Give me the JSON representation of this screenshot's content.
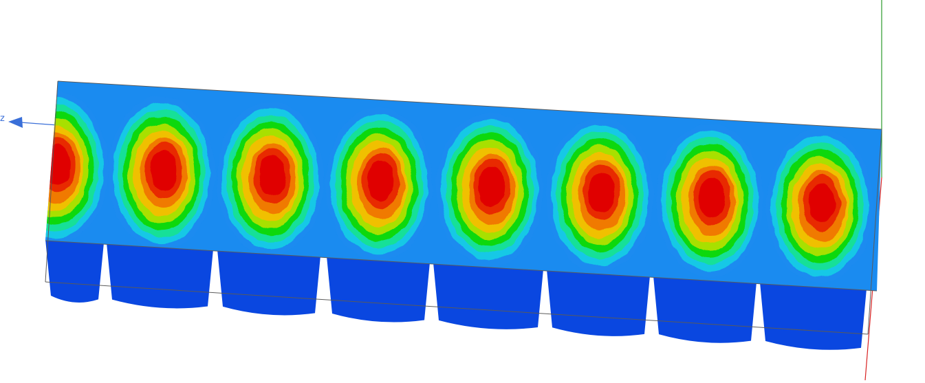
{
  "viewport": {
    "colors": {
      "background": "#ffffff",
      "outline": "#5a5a5a",
      "axis_z": "#3a6fd8",
      "axis_y": "#2a9a2a",
      "axis_x": "#d82020",
      "contour_levels": [
        "#0a47e0",
        "#1a8bf0",
        "#18c8e6",
        "#18e098",
        "#10d810",
        "#a8e000",
        "#f0c000",
        "#f07a00",
        "#e82a00",
        "#e00000"
      ]
    },
    "axes": {
      "z_label": "z"
    },
    "field": {
      "lobe_count": 8,
      "peak_level": 9
    }
  }
}
